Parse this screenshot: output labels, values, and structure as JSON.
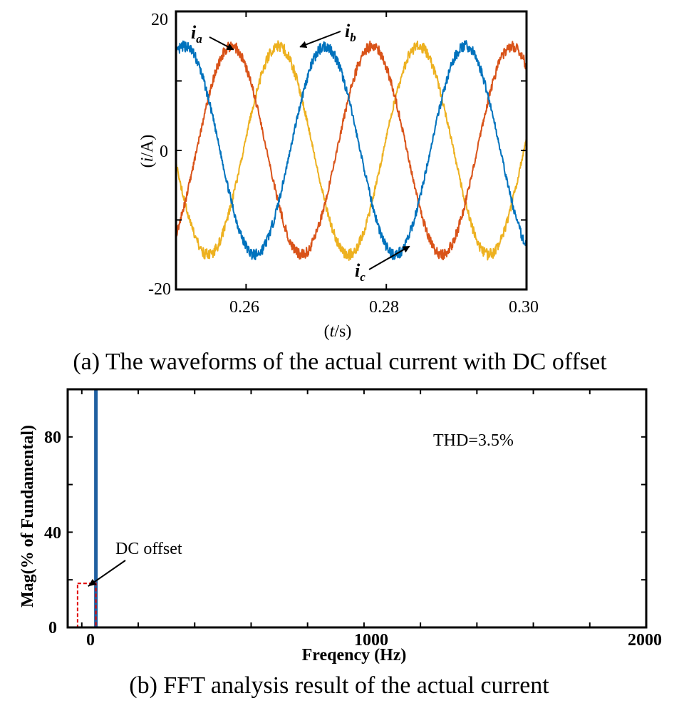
{
  "chart_data": [
    {
      "type": "line",
      "x_range": [
        0.25,
        0.3
      ],
      "ylim": [
        -20,
        20
      ],
      "x_ticks": [
        {
          "value": 0.26,
          "label": "0.26"
        },
        {
          "value": 0.28,
          "label": "0.28"
        },
        {
          "value": 0.3,
          "label": "0.30"
        }
      ],
      "y_ticks": [
        {
          "value": 20,
          "label": "20"
        },
        {
          "value": 0,
          "label": "0"
        },
        {
          "value": -20,
          "label": "-20"
        }
      ],
      "xlabel_var": "t",
      "xlabel_unit": "/s",
      "ylabel_var": "i",
      "ylabel_unit": "/A",
      "frequency_hz": 50,
      "amplitude": 15,
      "series": [
        {
          "name": "i_a",
          "letter": "i",
          "sub": "a",
          "phase_deg": -113,
          "color": "#0072BD"
        },
        {
          "name": "i_b",
          "letter": "i",
          "sub": "b",
          "phase_deg": 127,
          "color": "#D95319"
        },
        {
          "name": "i_c",
          "letter": "i",
          "sub": "c",
          "phase_deg": 7,
          "color": "#EDB120"
        }
      ],
      "annotations": {
        "ia": {
          "x": 0.2582,
          "y": 14.5
        },
        "ib": {
          "x": 0.2677,
          "y": 14.9
        },
        "ic": {
          "x": 0.2833,
          "y": -13.8
        }
      },
      "caption": "(a) The waveforms of the actual current with DC offset"
    },
    {
      "type": "bar",
      "x_range": [
        -50,
        2000
      ],
      "ylim": [
        0,
        100
      ],
      "x_ticks": [
        {
          "value": 0,
          "label": "0"
        },
        {
          "value": 1000,
          "label": "1000"
        },
        {
          "value": 2000,
          "label": "2000"
        }
      ],
      "y_ticks": [
        {
          "value": 80,
          "label": "80"
        },
        {
          "value": 40,
          "label": "40"
        },
        {
          "value": 0,
          "label": "0"
        }
      ],
      "xlabel": "Freqency (Hz)",
      "ylabel": "Mag(% of Fundamental)",
      "bars": [
        {
          "frequency": 50,
          "magnitude": 100
        }
      ],
      "bar_color": "#1F5FA0",
      "thd_text": "THD=3.5%",
      "dc_label": "DC offset",
      "dc_box": {
        "x_from": -15,
        "x_to": 50,
        "y_to": 18.5
      },
      "caption": "(b) FFT analysis result of the actual current"
    }
  ]
}
